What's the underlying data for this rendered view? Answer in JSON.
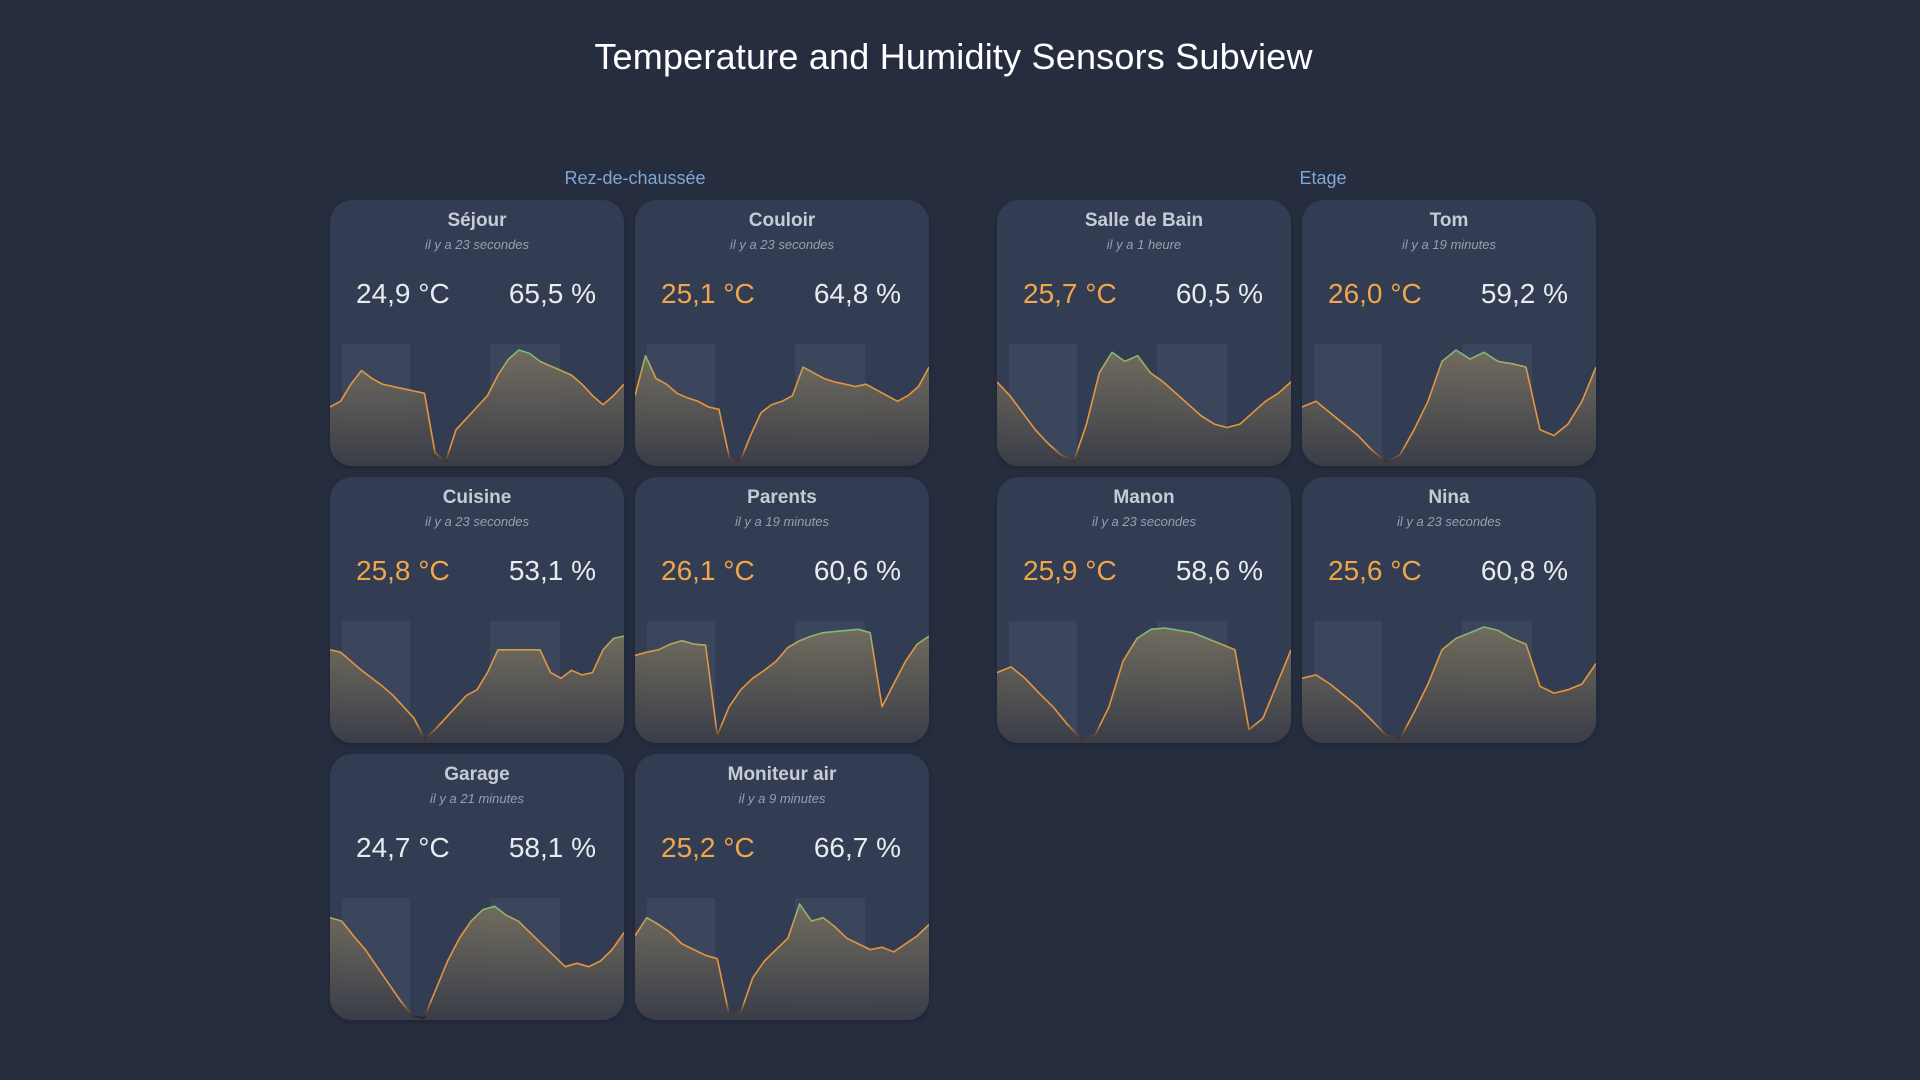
{
  "page": {
    "title": "Temperature and Humidity Sensors Subview"
  },
  "sections": [
    {
      "title": "Rez-de-chaussée"
    },
    {
      "title": "Etage"
    }
  ],
  "cards": [
    {
      "name": "Séjour",
      "updated": "il y a 23 secondes",
      "temperature": "24,9 °C",
      "humidity": "65,5 %",
      "temp_color": "#e9ebef",
      "trend": [
        0.5,
        0.55,
        0.7,
        0.82,
        0.75,
        0.7,
        0.68,
        0.66,
        0.64,
        0.62,
        0.1,
        0.02,
        0.3,
        0.4,
        0.5,
        0.6,
        0.78,
        0.92,
        1.0,
        0.97,
        0.9,
        0.86,
        0.82,
        0.78,
        0.7,
        0.6,
        0.52,
        0.6,
        0.7
      ]
    },
    {
      "name": "Couloir",
      "updated": "il y a 23 secondes",
      "temperature": "25,1 °C",
      "humidity": "64,8 %",
      "temp_color": "#f0a64a",
      "trend": [
        0.6,
        0.95,
        0.75,
        0.7,
        0.62,
        0.58,
        0.55,
        0.5,
        0.48,
        0.05,
        0.02,
        0.25,
        0.45,
        0.52,
        0.55,
        0.6,
        0.85,
        0.8,
        0.75,
        0.72,
        0.7,
        0.68,
        0.7,
        0.65,
        0.6,
        0.55,
        0.6,
        0.68,
        0.85
      ]
    },
    {
      "name": "Cuisine",
      "updated": "il y a 23 secondes",
      "temperature": "25,8 °C",
      "humidity": "53,1 %",
      "temp_color": "#f0a64a",
      "trend": [
        0.8,
        0.78,
        0.7,
        0.62,
        0.55,
        0.48,
        0.4,
        0.3,
        0.2,
        0.02,
        0.1,
        0.2,
        0.3,
        0.4,
        0.45,
        0.6,
        0.8,
        0.8,
        0.8,
        0.8,
        0.8,
        0.6,
        0.55,
        0.62,
        0.58,
        0.6,
        0.8,
        0.9,
        0.92
      ]
    },
    {
      "name": "Parents",
      "updated": "il y a 19 minutes",
      "temperature": "26,1 °C",
      "humidity": "60,6 %",
      "temp_color": "#f0a64a",
      "trend": [
        0.75,
        0.78,
        0.8,
        0.85,
        0.88,
        0.85,
        0.84,
        0.05,
        0.3,
        0.45,
        0.55,
        0.62,
        0.7,
        0.82,
        0.88,
        0.92,
        0.95,
        0.96,
        0.97,
        0.98,
        0.95,
        0.3,
        0.5,
        0.7,
        0.85,
        0.92
      ]
    },
    {
      "name": "Garage",
      "updated": "il y a 21 minutes",
      "temperature": "24,7 °C",
      "humidity": "58,1 %",
      "temp_color": "#e9ebef",
      "trend": [
        0.88,
        0.85,
        0.72,
        0.6,
        0.45,
        0.3,
        0.15,
        0.02,
        0.0,
        0.25,
        0.5,
        0.7,
        0.85,
        0.95,
        0.98,
        0.9,
        0.85,
        0.75,
        0.65,
        0.55,
        0.45,
        0.48,
        0.45,
        0.5,
        0.6,
        0.75
      ]
    },
    {
      "name": "Moniteur air",
      "updated": "il y a 9 minutes",
      "temperature": "25,2 °C",
      "humidity": "66,7 %",
      "temp_color": "#f0a64a",
      "trend": [
        0.72,
        0.88,
        0.82,
        0.75,
        0.65,
        0.6,
        0.55,
        0.52,
        0.03,
        0.05,
        0.35,
        0.5,
        0.6,
        0.7,
        1.0,
        0.85,
        0.88,
        0.8,
        0.7,
        0.65,
        0.6,
        0.62,
        0.58,
        0.65,
        0.72,
        0.82
      ]
    },
    {
      "name": "Salle de Bain",
      "updated": "il y a 1 heure",
      "temperature": "25,7 °C",
      "humidity": "60,5 %",
      "temp_color": "#f0a64a",
      "trend": [
        0.72,
        0.6,
        0.45,
        0.3,
        0.18,
        0.08,
        0.02,
        0.35,
        0.8,
        0.98,
        0.9,
        0.95,
        0.8,
        0.72,
        0.62,
        0.52,
        0.42,
        0.35,
        0.32,
        0.35,
        0.45,
        0.55,
        0.62,
        0.72
      ]
    },
    {
      "name": "Tom",
      "updated": "il y a 19 minutes",
      "temperature": "26,0 °C",
      "humidity": "59,2 %",
      "temp_color": "#f0a64a",
      "trend": [
        0.5,
        0.55,
        0.45,
        0.35,
        0.25,
        0.12,
        0.02,
        0.08,
        0.3,
        0.55,
        0.9,
        1.0,
        0.92,
        0.98,
        0.9,
        0.88,
        0.85,
        0.3,
        0.25,
        0.35,
        0.55,
        0.85
      ]
    },
    {
      "name": "Manon",
      "updated": "il y a 23 secondes",
      "temperature": "25,9 °C",
      "humidity": "58,6 %",
      "temp_color": "#f0a64a",
      "trend": [
        0.6,
        0.65,
        0.55,
        0.42,
        0.3,
        0.15,
        0.02,
        0.05,
        0.3,
        0.7,
        0.9,
        0.98,
        0.99,
        0.97,
        0.95,
        0.9,
        0.85,
        0.8,
        0.1,
        0.2,
        0.5,
        0.8
      ]
    },
    {
      "name": "Nina",
      "updated": "il y a 23 secondes",
      "temperature": "25,6 °C",
      "humidity": "60,8 %",
      "temp_color": "#f0a64a",
      "trend": [
        0.55,
        0.58,
        0.5,
        0.4,
        0.3,
        0.18,
        0.05,
        0.02,
        0.25,
        0.5,
        0.8,
        0.9,
        0.95,
        1.0,
        0.97,
        0.9,
        0.85,
        0.48,
        0.42,
        0.45,
        0.5,
        0.68
      ]
    }
  ],
  "colors": {
    "line_warm": "#e6953f",
    "line_hot": "#6fbf7d",
    "line_cold": "#1f1f24",
    "night_band": "#3f4a62"
  }
}
